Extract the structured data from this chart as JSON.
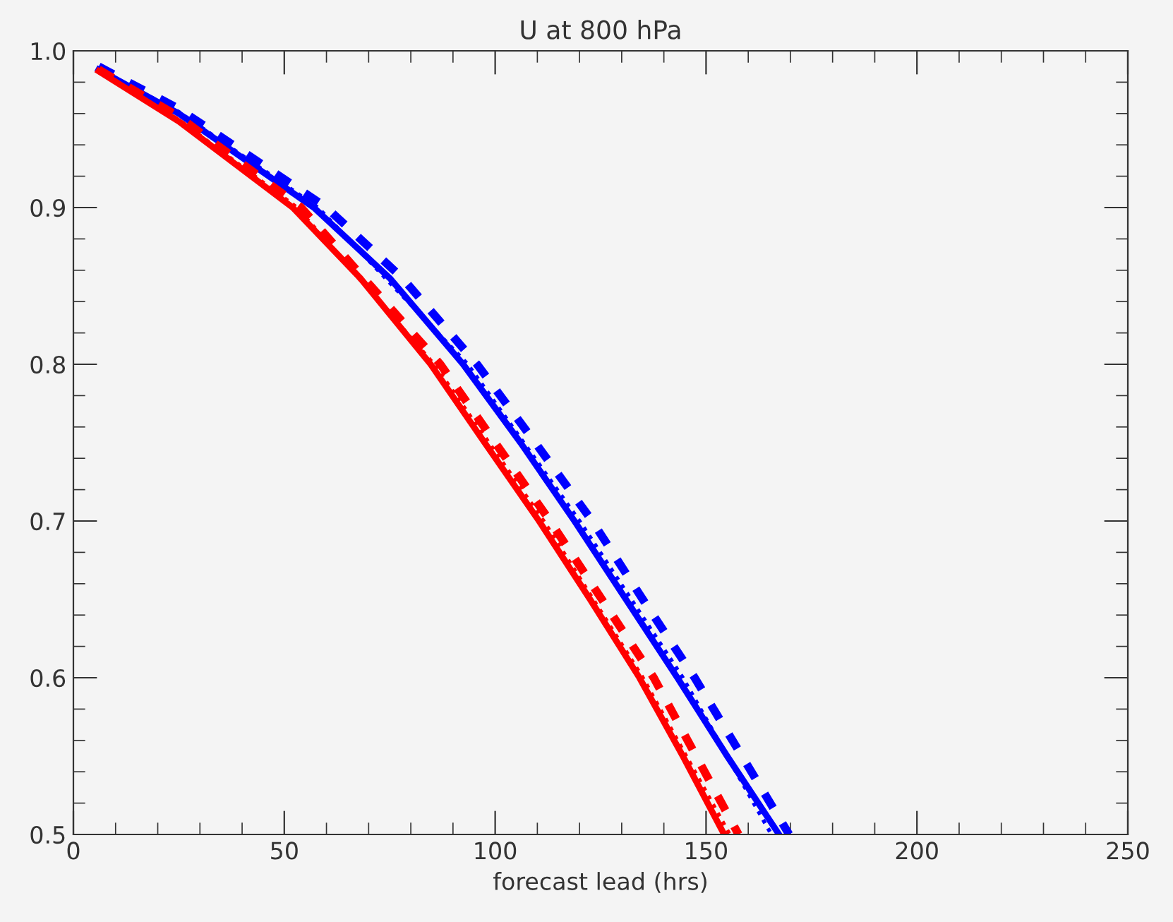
{
  "chart_data": {
    "type": "line",
    "title": "U at 800 hPa",
    "xlabel": "forecast lead (hrs)",
    "xlim": [
      0,
      250
    ],
    "xticks": [
      0,
      50,
      100,
      150,
      200,
      250
    ],
    "ylim": [
      0.5,
      1.0
    ],
    "yticks": [
      {
        "value": 0.5,
        "label": "0.5"
      },
      {
        "value": 0.6,
        "label": "0.6"
      },
      {
        "value": 0.7,
        "label": "0.7"
      },
      {
        "value": 0.8,
        "label": "0.8"
      },
      {
        "value": 0.9,
        "label": "0.9"
      },
      {
        "value": 1.0,
        "label": "1.0"
      }
    ],
    "grid": false,
    "marker": "none",
    "series": [
      {
        "color": "#0000ff",
        "line_style": "solid",
        "x": [
          6,
          25,
          57,
          75,
          92.4,
          106,
          118.8,
          131,
          143.2,
          155,
          167.3
        ],
        "values": [
          0.988,
          0.96,
          0.9,
          0.855,
          0.8,
          0.75,
          0.7,
          0.65,
          0.6,
          0.55,
          0.5
        ]
      },
      {
        "color": "#0000ff",
        "line_style": "dashed",
        "x": [
          6,
          25,
          60,
          78,
          95.7,
          109.5,
          123,
          135,
          147.3,
          158.5,
          169.7
        ],
        "values": [
          0.99,
          0.963,
          0.9,
          0.855,
          0.8,
          0.75,
          0.7,
          0.65,
          0.6,
          0.55,
          0.5
        ]
      },
      {
        "color": "#0000ff",
        "line_style": "dotted",
        "x": [
          6,
          25,
          58,
          93.5,
          120,
          144.5,
          165.5
        ],
        "values": [
          0.988,
          0.961,
          0.9,
          0.8,
          0.7,
          0.6,
          0.5
        ]
      },
      {
        "color": "#ff0000",
        "line_style": "solid",
        "x": [
          6,
          25,
          52,
          68,
          84.7,
          97.5,
          110.4,
          122.5,
          134.2,
          144.5,
          154.3
        ],
        "values": [
          0.987,
          0.955,
          0.9,
          0.855,
          0.8,
          0.75,
          0.7,
          0.65,
          0.6,
          0.55,
          0.5
        ]
      },
      {
        "color": "#ff0000",
        "line_style": "dashed",
        "x": [
          6,
          25,
          54,
          87,
          113,
          137.6,
          157.7
        ],
        "values": [
          0.988,
          0.958,
          0.9,
          0.8,
          0.7,
          0.6,
          0.5
        ]
      },
      {
        "color": "#ff0000",
        "line_style": "dotted",
        "x": [
          6,
          25,
          53,
          85.5,
          111.5,
          135,
          155.6
        ],
        "values": [
          0.987,
          0.956,
          0.9,
          0.8,
          0.7,
          0.6,
          0.5
        ]
      }
    ]
  }
}
